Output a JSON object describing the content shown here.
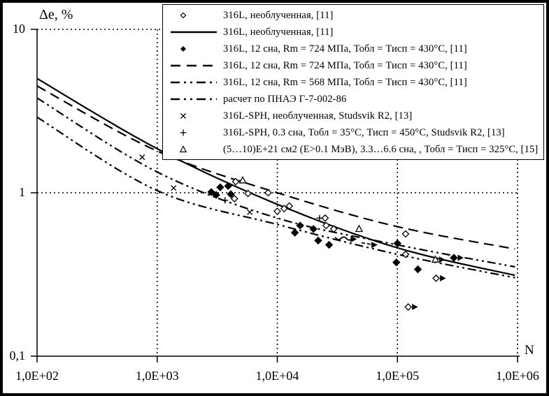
{
  "axes": {
    "ylabel": "Δe, %",
    "xlabel": "N",
    "y_tick_labels": [
      "10",
      "1",
      "0,1"
    ],
    "x_tick_labels": [
      "1,0E+02",
      "1,0E+03",
      "1,0E+04",
      "1,0E+05",
      "1,0E+06"
    ]
  },
  "legend": {
    "entries": [
      {
        "sample": "marker-open-diamond",
        "label": "316L, необлученная, [11]"
      },
      {
        "sample": "line-solid",
        "label": "316L, необлученная, [11]"
      },
      {
        "sample": "marker-filled-diamond",
        "label": "316L, 12 сна, Rm = 724 МПа, Тобл = Тисп = 430°С, [11]"
      },
      {
        "sample": "line-longdash",
        "label": "316L, 12 сна, Rm = 724 МПа, Тобл = Тисп = 430°С, [11]"
      },
      {
        "sample": "line-dashdot",
        "label": "316L, 12 сна, Rm = 568 МПа, Тобл = Тисп = 430°С, [11]"
      },
      {
        "sample": "line-dashdot",
        "label": "расчет по ПНАЭ Г-7-002-86"
      },
      {
        "sample": "marker-x",
        "label": "316L-SPH, необлученная, Studsvik R2, [13]"
      },
      {
        "sample": "marker-plus",
        "label": "316L-SPH, 0.3 сна, Тобл = 35°С, Тисп = 450°С, Studsvik R2, [13]"
      },
      {
        "sample": "marker-triangle",
        "label": "(5…10)Е+21 см2 (Е>0.1 МэВ), 3.3…6.6 сна, , Тобл = Тисп = 325°С, [15]"
      }
    ]
  },
  "chart_data": {
    "type": "line",
    "scale": "log-log",
    "title": "",
    "xlabel": "N",
    "ylabel": "Δe, %",
    "xlim": [
      100,
      1000000
    ],
    "ylim": [
      0.1,
      10
    ],
    "x_ticks": [
      100,
      1000,
      10000,
      100000,
      1000000
    ],
    "y_ticks": [
      10,
      1,
      0.1
    ],
    "grid": "dotted",
    "legend_position": "top-right",
    "curves": [
      {
        "name": "316L, необлученная, [11]",
        "style": "solid",
        "points": [
          [
            100,
            5.0
          ],
          [
            1000,
            1.86
          ],
          [
            10000,
            0.85
          ],
          [
            100000,
            0.46
          ],
          [
            1000000,
            0.31
          ]
        ]
      },
      {
        "name": "316L, 12 сна, Rm = 724 МПа, Тобл = Тисп = 430°С, [11]",
        "style": "longdash",
        "points": [
          [
            100,
            4.5
          ],
          [
            1000,
            1.8
          ],
          [
            10000,
            1.0
          ],
          [
            100000,
            0.62
          ],
          [
            1000000,
            0.45
          ]
        ]
      },
      {
        "name": "316L, 12 сна, Rm = 568 МПа, Тобл = Тисп = 430°С, [11]",
        "style": "dashdot",
        "points": [
          [
            100,
            3.8
          ],
          [
            1000,
            1.34
          ],
          [
            10000,
            0.7
          ],
          [
            100000,
            0.48
          ],
          [
            1000000,
            0.35
          ]
        ]
      },
      {
        "name": "расчет по ПНАЭ Г-7-002-86",
        "style": "dashdot",
        "points": [
          [
            100,
            2.9
          ],
          [
            1000,
            1.03
          ],
          [
            10000,
            0.64
          ],
          [
            100000,
            0.42
          ],
          [
            1000000,
            0.3
          ]
        ]
      }
    ],
    "scatter_series": [
      {
        "name": "316L, необлученная, [11]",
        "marker": "open-diamond",
        "points": [
          [
            4500,
            1.17
          ],
          [
            4400,
            0.92
          ],
          [
            5700,
            0.99
          ],
          [
            8400,
            1.0
          ],
          [
            10000,
            0.77
          ],
          [
            11400,
            0.8
          ],
          [
            12600,
            0.83
          ],
          [
            25000,
            0.7
          ],
          [
            25500,
            0.63
          ],
          [
            29500,
            0.6
          ],
          [
            117000,
            0.56
          ],
          [
            117000,
            0.42
          ],
          [
            210000,
            0.3,
            1
          ],
          [
            123000,
            0.2,
            1
          ]
        ]
      },
      {
        "name": "316L, 12 сна, Rm = 724 МПа, Тобл = Тисп = 430°С, [11]",
        "marker": "filled-diamond",
        "points": [
          [
            2820,
            1.01
          ],
          [
            3100,
            0.97
          ],
          [
            3350,
            1.08
          ],
          [
            3900,
            1.1
          ],
          [
            4100,
            0.98
          ],
          [
            14000,
            0.57
          ],
          [
            15500,
            0.63
          ],
          [
            20000,
            0.6
          ],
          [
            21900,
            0.51
          ],
          [
            27000,
            0.48
          ],
          [
            98000,
            0.375
          ],
          [
            100000,
            0.49
          ],
          [
            148000,
            0.34
          ],
          [
            295000,
            0.4,
            1
          ]
        ]
      },
      {
        "name": "316L-SPH, необлученная, Studsvik R2, [13]",
        "marker": "x",
        "points": [
          [
            750,
            1.65
          ],
          [
            1370,
            1.07
          ],
          [
            5900,
            0.76
          ]
        ]
      },
      {
        "name": "316L-SPH, 0.3 сна, Тобл = 35°С, Тисп = 450°С, Studsvik R2, [13]",
        "marker": "plus",
        "points": [
          [
            3670,
            0.9
          ],
          [
            22500,
            0.7
          ]
        ]
      },
      {
        "name": "(5…10)Е+21 см2 (Е>0.1 МэВ), 3.3…6.6 сна, Тобл = Тисп = 325°С, [15]",
        "marker": "triangle",
        "points": [
          [
            5150,
            1.19
          ],
          [
            48000,
            0.6
          ],
          [
            207000,
            0.39,
            1
          ]
        ]
      }
    ],
    "runout_annotations": [
      {
        "N": 43000,
        "value": 0.52,
        "style": "wavy-arrow"
      },
      {
        "N": 64000,
        "value": 0.48,
        "style": "dash-arrow"
      }
    ]
  }
}
